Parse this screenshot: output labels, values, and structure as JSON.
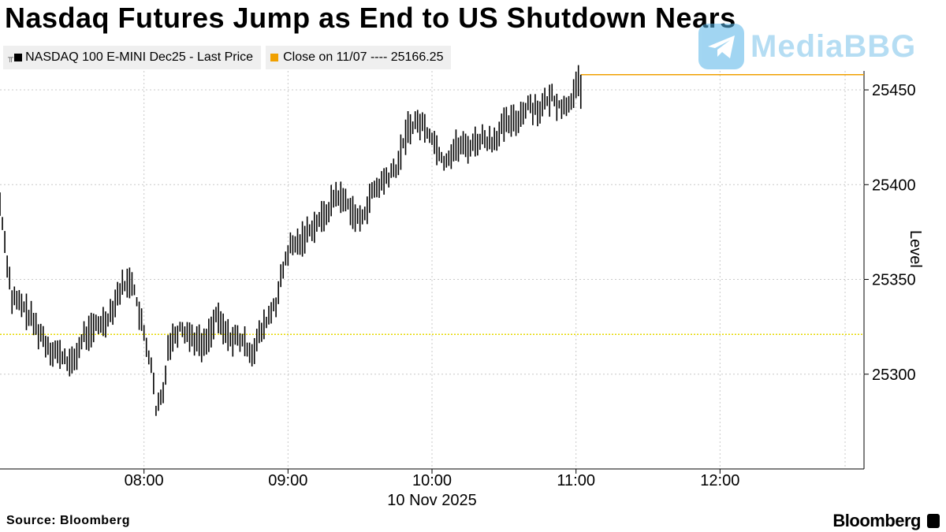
{
  "header": {
    "title": "Nasdaq Futures Jump as End to US Shutdown Nears"
  },
  "legend": {
    "series_label": "NASDAQ 100 E-MINI Dec25 - Last Price",
    "close_label": "Close on 11/07 ---- 25166.25"
  },
  "footer": {
    "source": "Source: Bloomberg",
    "brand": "Bloomberg"
  },
  "watermark": {
    "text": "MediaBBG",
    "icon": "telegram-icon"
  },
  "colors": {
    "price": "#000000",
    "close_line": "#f0a000",
    "ref_line": "#e6d800",
    "grid": "#c8c8c8"
  },
  "chart_data": {
    "type": "candlestick",
    "title": "Nasdaq Futures Jump as End to US Shutdown Nears",
    "xlabel": "10 Nov 2025",
    "ylabel": "Level",
    "ylim": [
      25250,
      25460
    ],
    "y_ticks": [
      25300,
      25350,
      25400,
      25450
    ],
    "x_range": [
      "07:00",
      "13:00"
    ],
    "x_ticks": [
      "08:00",
      "09:00",
      "10:00",
      "11:00",
      "12:00"
    ],
    "x_date_label": "10 Nov 2025",
    "grid": true,
    "legend_placement": "top-left",
    "reference_level": 25321,
    "series": [
      {
        "name": "NASDAQ 100 E-MINI Dec25 - Last Price",
        "time": [
          "07:00",
          "07:05",
          "07:10",
          "07:15",
          "07:20",
          "07:25",
          "07:30",
          "07:35",
          "07:40",
          "07:45",
          "07:50",
          "07:55",
          "08:00",
          "08:03",
          "08:05",
          "08:08",
          "08:10",
          "08:15",
          "08:20",
          "08:25",
          "08:30",
          "08:35",
          "08:40",
          "08:45",
          "08:50",
          "08:55",
          "09:00",
          "09:05",
          "09:10",
          "09:15",
          "09:20",
          "09:25",
          "09:30",
          "09:35",
          "09:40",
          "09:45",
          "09:50",
          "09:55",
          "10:00",
          "10:05",
          "10:10",
          "10:15",
          "10:20",
          "10:25",
          "10:30",
          "10:35",
          "10:40",
          "10:45",
          "10:50",
          "10:55",
          "11:00",
          "11:02"
        ],
        "values": [
          25390,
          25340,
          25335,
          25325,
          25315,
          25310,
          25305,
          25320,
          25325,
          25330,
          25345,
          25350,
          25320,
          25305,
          25280,
          25290,
          25315,
          25325,
          25320,
          25315,
          25330,
          25320,
          25318,
          25312,
          25325,
          25338,
          25365,
          25370,
          25378,
          25383,
          25395,
          25390,
          25380,
          25395,
          25402,
          25408,
          25430,
          25433,
          25425,
          25412,
          25420,
          25420,
          25424,
          25423,
          25431,
          25434,
          25442,
          25440,
          25446,
          25440,
          25450,
          25458
        ]
      }
    ],
    "close_value": 25458
  }
}
